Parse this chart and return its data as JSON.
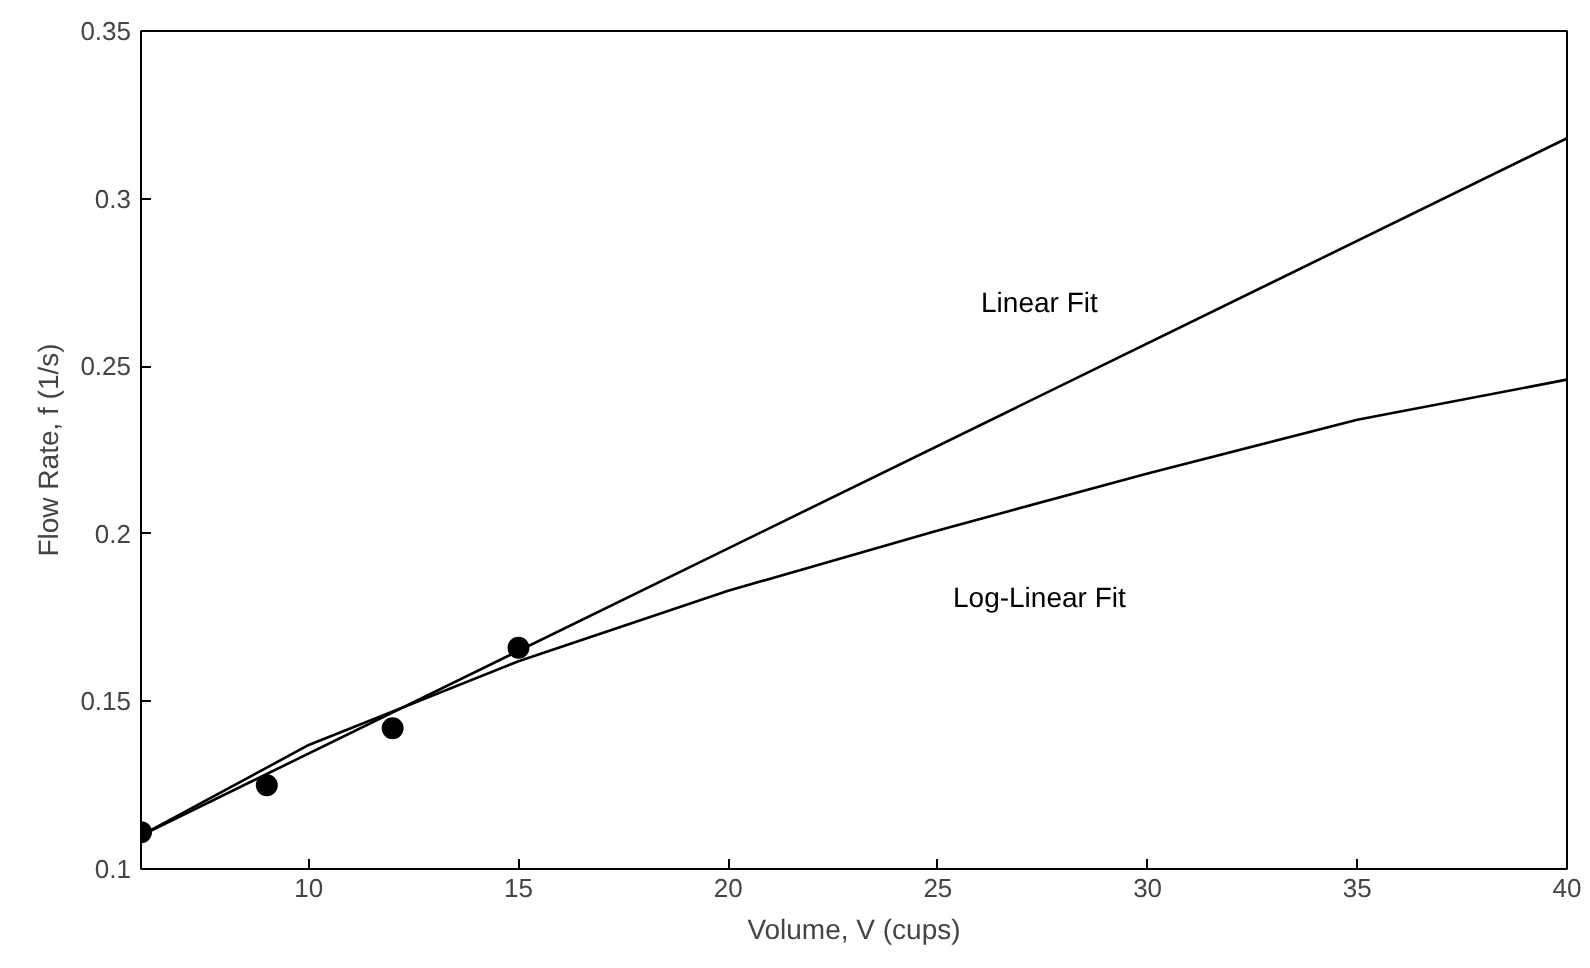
{
  "chart_data": {
    "type": "scatter",
    "xlabel": "Volume, V (cups)",
    "ylabel": "Flow Rate, f (1/s)",
    "xlim": [
      6,
      40
    ],
    "ylim": [
      0.1,
      0.35
    ],
    "xticks": [
      10,
      15,
      20,
      25,
      30,
      35,
      40
    ],
    "yticks": [
      0.1,
      0.15,
      0.2,
      0.25,
      0.3,
      0.35
    ],
    "grid": false,
    "series": [
      {
        "color": "#000000",
        "marker": "circle",
        "x": [
          6,
          9,
          12,
          15
        ],
        "values": [
          0.111,
          0.125,
          0.142,
          0.166
        ]
      },
      {
        "type": "line",
        "name": "Linear Fit",
        "color": "#000000",
        "line_style": "solid",
        "x": [
          6,
          40
        ],
        "values": [
          0.11,
          0.318
        ]
      },
      {
        "type": "line",
        "name": "Log-Linear Fit",
        "color": "#000000",
        "line_style": "solid",
        "x": [
          6,
          10,
          15,
          20,
          25,
          30,
          35,
          40
        ],
        "values": [
          0.11,
          0.137,
          0.162,
          0.183,
          0.201,
          0.218,
          0.234,
          0.246
        ]
      }
    ]
  }
}
